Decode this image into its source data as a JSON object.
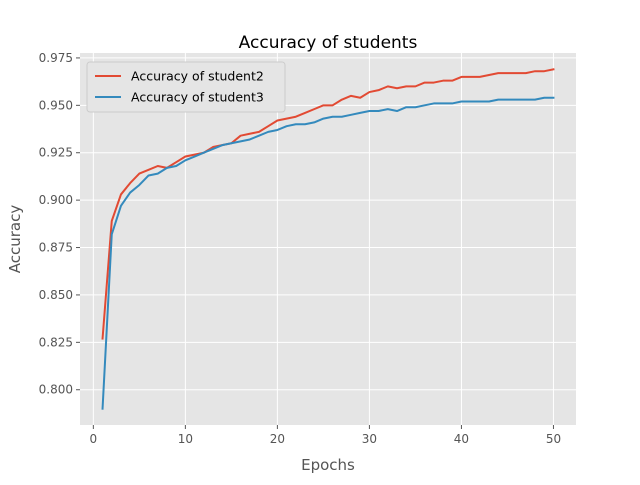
{
  "chart_data": {
    "type": "line",
    "title": "Accuracy of students",
    "xlabel": "Epochs",
    "ylabel": "Accuracy",
    "xlim": [
      -1.45,
      52.45
    ],
    "ylim": [
      0.7814,
      0.9776
    ],
    "xticks": [
      0,
      10,
      20,
      30,
      40,
      50
    ],
    "yticks": [
      0.8,
      0.825,
      0.85,
      0.875,
      0.9,
      0.925,
      0.95,
      0.975
    ],
    "ytick_labels": [
      "0.800",
      "0.825",
      "0.850",
      "0.875",
      "0.900",
      "0.925",
      "0.950",
      "0.975"
    ],
    "grid": true,
    "background": "#e5e5e5",
    "grid_color": "#ffffff",
    "legend_position": "upper-left",
    "x": [
      1,
      2,
      3,
      4,
      5,
      6,
      7,
      8,
      9,
      10,
      11,
      12,
      13,
      14,
      15,
      16,
      17,
      18,
      19,
      20,
      21,
      22,
      23,
      24,
      25,
      26,
      27,
      28,
      29,
      30,
      31,
      32,
      33,
      34,
      35,
      36,
      37,
      38,
      39,
      40,
      41,
      42,
      43,
      44,
      45,
      46,
      47,
      48,
      49,
      50
    ],
    "series": [
      {
        "name": "Accuracy of student2",
        "color": "#e24a33",
        "values": [
          0.827,
          0.889,
          0.903,
          0.909,
          0.914,
          0.916,
          0.918,
          0.917,
          0.92,
          0.923,
          0.924,
          0.925,
          0.928,
          0.929,
          0.93,
          0.934,
          0.935,
          0.936,
          0.939,
          0.942,
          0.943,
          0.944,
          0.946,
          0.948,
          0.95,
          0.95,
          0.953,
          0.955,
          0.954,
          0.957,
          0.958,
          0.96,
          0.959,
          0.96,
          0.96,
          0.962,
          0.962,
          0.963,
          0.963,
          0.965,
          0.965,
          0.965,
          0.966,
          0.967,
          0.967,
          0.967,
          0.967,
          0.968,
          0.968,
          0.969
        ]
      },
      {
        "name": "Accuracy of student3",
        "color": "#348abd",
        "values": [
          0.79,
          0.882,
          0.897,
          0.904,
          0.908,
          0.913,
          0.914,
          0.917,
          0.918,
          0.921,
          0.923,
          0.925,
          0.927,
          0.929,
          0.93,
          0.931,
          0.932,
          0.934,
          0.936,
          0.937,
          0.939,
          0.94,
          0.94,
          0.941,
          0.943,
          0.944,
          0.944,
          0.945,
          0.946,
          0.947,
          0.947,
          0.948,
          0.947,
          0.949,
          0.949,
          0.95,
          0.951,
          0.951,
          0.951,
          0.952,
          0.952,
          0.952,
          0.952,
          0.953,
          0.953,
          0.953,
          0.953,
          0.953,
          0.954,
          0.954
        ]
      }
    ]
  }
}
